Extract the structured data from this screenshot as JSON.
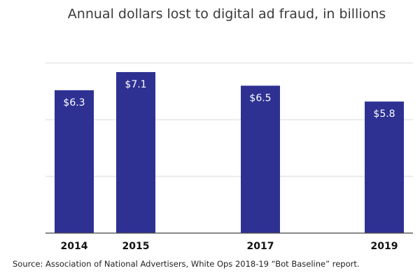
{
  "chart_data": {
    "type": "bar",
    "title": "Annual dollars lost to digital ad fraud, in billions",
    "categories": [
      "2014",
      "2015",
      "2017",
      "2019"
    ],
    "values": [
      6.3,
      7.1,
      6.5,
      5.8
    ],
    "data_labels": [
      "$6.3",
      "$7.1",
      "$6.5",
      "$5.8"
    ],
    "xlabel": "",
    "ylabel": "",
    "ylim": [
      0,
      7.5
    ],
    "y_grid": [
      2.5,
      5.0,
      7.5
    ],
    "grid": true,
    "legend": "none",
    "bar_color": "#2e3192",
    "source": "Source: Association of National Advertisers, White Ops 2018-19 “Bot Baseline” report."
  }
}
